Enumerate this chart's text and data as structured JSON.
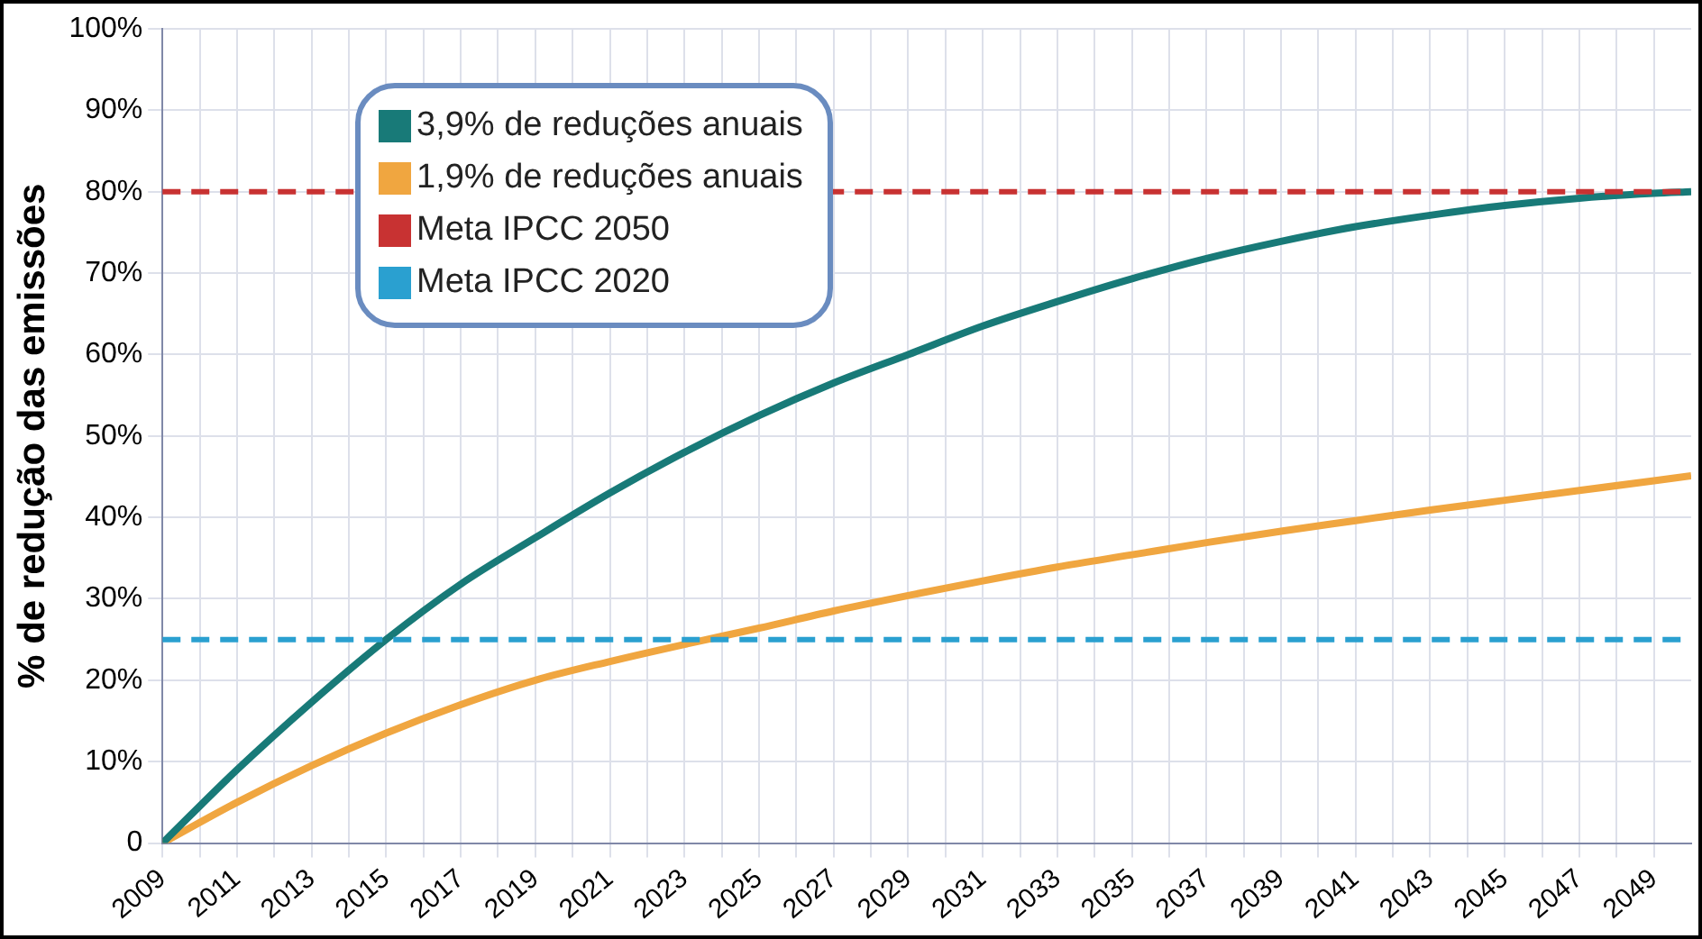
{
  "chart_data": {
    "type": "line",
    "ylabel": "% de redução das emissões",
    "x": [
      2009,
      2011,
      2013,
      2015,
      2017,
      2019,
      2021,
      2023,
      2025,
      2027,
      2029,
      2031,
      2033,
      2035,
      2037,
      2039,
      2041,
      2043,
      2045,
      2047,
      2049,
      2050
    ],
    "series": [
      {
        "name": "3,9% de reduções anuais",
        "color": "#187a78",
        "values": [
          0,
          9,
          17.3,
          25,
          31.8,
          37.5,
          43,
          48,
          52.5,
          56.5,
          60,
          63.5,
          66.5,
          69.3,
          71.8,
          73.9,
          75.7,
          77.1,
          78.3,
          79.2,
          79.8,
          80
        ]
      },
      {
        "name": "1,9% de reduções anuais",
        "color": "#f0a640",
        "values": [
          0,
          5,
          9.5,
          13.5,
          17,
          20,
          22.3,
          24.4,
          26.4,
          28.5,
          30.4,
          32.2,
          33.9,
          35.4,
          36.9,
          38.3,
          39.6,
          40.9,
          42.1,
          43.3,
          44.5,
          45.1
        ]
      }
    ],
    "ref_lines": [
      {
        "axis": "y",
        "value": 80,
        "label": "Meta IPCC 2050",
        "color": "#c83232",
        "line_style": "dashed"
      },
      {
        "axis": "y",
        "value": 25,
        "label": "Meta IPCC 2020",
        "color": "#2aa0d0",
        "line_style": "dashed"
      }
    ],
    "xlim": [
      2009,
      2050
    ],
    "xticks": [
      2009,
      {
        "value": 2010,
        "label": null
      },
      2011,
      {
        "value": 2012,
        "label": null
      },
      2013,
      {
        "value": 2014,
        "label": null
      },
      2015,
      {
        "value": 2016,
        "label": null
      },
      2017,
      {
        "value": 2018,
        "label": null
      },
      2019,
      {
        "value": 2020,
        "label": null
      },
      2021,
      {
        "value": 2022,
        "label": null
      },
      2023,
      {
        "value": 2024,
        "label": null
      },
      2025,
      {
        "value": 2026,
        "label": null
      },
      2027,
      {
        "value": 2028,
        "label": null
      },
      2029,
      {
        "value": 2030,
        "label": null
      },
      2031,
      {
        "value": 2032,
        "label": null
      },
      2033,
      {
        "value": 2034,
        "label": null
      },
      2035,
      {
        "value": 2036,
        "label": null
      },
      2037,
      {
        "value": 2038,
        "label": null
      },
      2039,
      {
        "value": 2040,
        "label": null
      },
      2041,
      {
        "value": 2042,
        "label": null
      },
      2043,
      {
        "value": 2044,
        "label": null
      },
      2045,
      {
        "value": 2046,
        "label": null
      },
      2047,
      {
        "value": 2048,
        "label": null
      },
      2049
    ],
    "ylim": [
      0,
      100
    ],
    "yticks": [
      0,
      {
        "value": 10,
        "label": "10%"
      },
      {
        "value": 20,
        "label": "20%"
      },
      {
        "value": 30,
        "label": "30%"
      },
      {
        "value": 40,
        "label": "40%"
      },
      {
        "value": 50,
        "label": "50%"
      },
      {
        "value": 60,
        "label": "60%"
      },
      {
        "value": 70,
        "label": "70%"
      },
      {
        "value": 80,
        "label": "80%"
      },
      {
        "value": 90,
        "label": "90%"
      },
      {
        "value": 100,
        "label": "100%"
      }
    ],
    "grid": true,
    "legend": "top left",
    "marker": "none",
    "line_style": "solid"
  }
}
